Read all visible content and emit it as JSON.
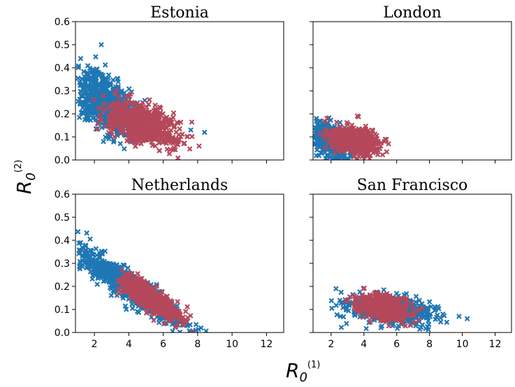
{
  "figure": {
    "xlabel_main": "R",
    "xlabel_sub": "0",
    "xlabel_sup": "(1)",
    "ylabel_main": "R",
    "ylabel_sub": "0",
    "ylabel_sup": "(2)"
  },
  "colors": {
    "series_blue": "#1f77b4",
    "series_red": "#b5485a"
  },
  "chart_data": [
    {
      "type": "scatter",
      "title": "Estonia",
      "xlim": [
        0.9,
        13
      ],
      "ylim": [
        0,
        0.6
      ],
      "xticks": [
        2,
        4,
        6,
        8,
        10,
        12
      ],
      "yticks": [
        0.0,
        0.1,
        0.2,
        0.3,
        0.4,
        0.5,
        0.6
      ],
      "marker": "x",
      "series": [
        {
          "color": "#1f77b4",
          "cx": 2.6,
          "cy": 0.25,
          "sx": 0.95,
          "sy": 0.07,
          "rho": -0.55,
          "n": 700,
          "extra_points": [
            [
              2.4,
              0.5
            ],
            [
              8.4,
              0.12
            ],
            [
              7.6,
              0.13
            ],
            [
              1.2,
              0.44
            ]
          ]
        },
        {
          "color": "#b5485a",
          "cx": 4.8,
          "cy": 0.155,
          "sx": 1.0,
          "sy": 0.045,
          "rho": -0.45,
          "n": 650,
          "extra_points": [
            [
              7.2,
              0.07
            ],
            [
              3.0,
              0.2
            ]
          ]
        }
      ]
    },
    {
      "type": "scatter",
      "title": "London",
      "xlim": [
        0.9,
        13
      ],
      "ylim": [
        0,
        0.6
      ],
      "xticks": [
        2,
        4,
        6,
        8,
        10,
        12
      ],
      "yticks": [
        0.0,
        0.1,
        0.2,
        0.3,
        0.4,
        0.5,
        0.6
      ],
      "marker": "x",
      "series": [
        {
          "color": "#1f77b4",
          "cx": 1.9,
          "cy": 0.085,
          "sx": 0.55,
          "sy": 0.035,
          "rho": -0.4,
          "n": 550,
          "extra_points": [
            [
              1.1,
              0.18
            ],
            [
              3.2,
              0.02
            ]
          ]
        },
        {
          "color": "#b5485a",
          "cx": 3.5,
          "cy": 0.085,
          "sx": 0.75,
          "sy": 0.03,
          "rho": -0.35,
          "n": 550,
          "extra_points": [
            [
              5.5,
              0.07
            ],
            [
              5.3,
              0.09
            ]
          ]
        }
      ]
    },
    {
      "type": "scatter",
      "title": "Netherlands",
      "xlim": [
        0.9,
        13
      ],
      "ylim": [
        0,
        0.6
      ],
      "xticks": [
        2,
        4,
        6,
        8,
        10,
        12
      ],
      "yticks": [
        0.0,
        0.1,
        0.2,
        0.3,
        0.4,
        0.5,
        0.6
      ],
      "marker": "x",
      "series": [
        {
          "color": "#1f77b4",
          "cx": 4.0,
          "cy": 0.2,
          "sx": 1.7,
          "sy": 0.09,
          "rho": -0.94,
          "n": 900,
          "extra_points": [
            [
              1.2,
              0.39
            ],
            [
              8.2,
              0.02
            ],
            [
              7.9,
              0.01
            ]
          ]
        },
        {
          "color": "#b5485a",
          "cx": 5.3,
          "cy": 0.145,
          "sx": 0.8,
          "sy": 0.045,
          "rho": -0.8,
          "n": 650,
          "extra_points": [
            [
              7.0,
              0.06
            ],
            [
              3.6,
              0.27
            ]
          ]
        }
      ]
    },
    {
      "type": "scatter",
      "title": "San Francisco",
      "xlim": [
        0.9,
        13
      ],
      "ylim": [
        0,
        0.6
      ],
      "xticks": [
        2,
        4,
        6,
        8,
        10,
        12
      ],
      "yticks": [
        0.0,
        0.1,
        0.2,
        0.3,
        0.4,
        0.5,
        0.6
      ],
      "marker": "x",
      "series": [
        {
          "color": "#1f77b4",
          "cx": 5.6,
          "cy": 0.1,
          "sx": 1.25,
          "sy": 0.03,
          "rho": -0.35,
          "n": 650,
          "extra_points": [
            [
              2.3,
              0.19
            ],
            [
              10.3,
              0.06
            ],
            [
              9.8,
              0.07
            ]
          ]
        },
        {
          "color": "#b5485a",
          "cx": 5.2,
          "cy": 0.105,
          "sx": 0.8,
          "sy": 0.028,
          "rho": -0.3,
          "n": 550,
          "extra_points": [
            [
              3.6,
              0.13
            ],
            [
              6.8,
              0.08
            ]
          ]
        }
      ]
    }
  ]
}
